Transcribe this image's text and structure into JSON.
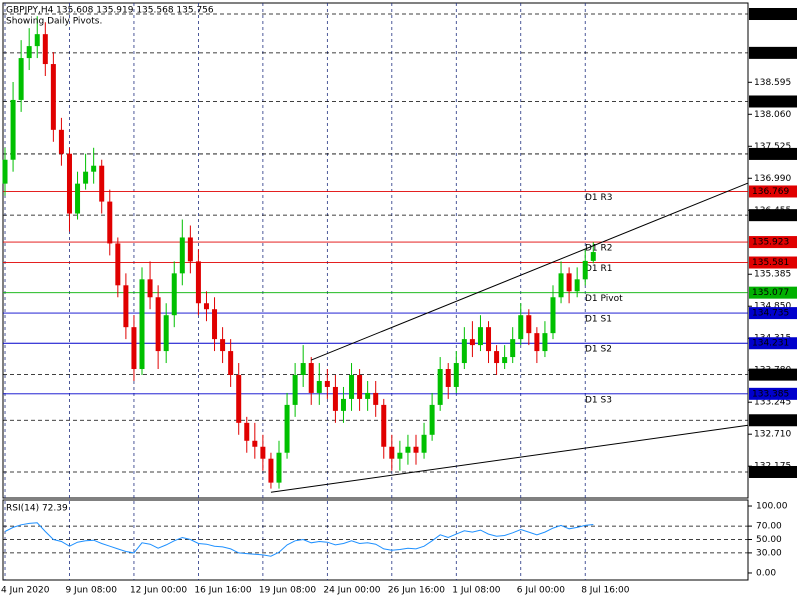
{
  "chart_data": [
    {
      "type": "candlestick",
      "title": "GBPJPY,H4  135.608 135.919 135.568 135.756",
      "subtitle": "Showing Daily Pivots.",
      "xlim": [
        -0.25,
        92.2
      ],
      "xticks": [
        {
          "value": 0,
          "label": "4 Jun 2020"
        },
        {
          "value": 8,
          "label": "9 Jun 08:00"
        },
        {
          "value": 16,
          "label": "12 Jun 00:00"
        },
        {
          "value": 24,
          "label": "16 Jun 16:00"
        },
        {
          "value": 32,
          "label": "19 Jun 08:00"
        },
        {
          "value": 40,
          "label": "24 Jun 00:00"
        },
        {
          "value": 48,
          "label": "26 Jun 16:00"
        },
        {
          "value": 56,
          "label": "1 Jul 08:00"
        },
        {
          "value": 64,
          "label": "6 Jul 00:00"
        },
        {
          "value": 72,
          "label": "8 Jul 16:00"
        }
      ],
      "ylim": [
        131.643,
        139.921
      ],
      "yticks": [
        138.595,
        {
          "value": 138.06,
          "label": "138.060"
        },
        137.525,
        {
          "value": 136.99,
          "label": "136.990"
        },
        136.455,
        135.385,
        {
          "value": 134.85,
          "label": "134.850"
        },
        134.315,
        {
          "value": 133.78,
          "label": "133.780"
        },
        133.245,
        {
          "value": 132.71,
          "label": "132.710"
        },
        132.175
      ],
      "up_color": "#00c000",
      "down_color": "#e00000",
      "open": [
        136.9,
        137.3,
        138.3,
        139.0,
        139.2,
        139.4,
        138.9,
        137.8,
        137.4,
        136.4,
        136.9,
        137.1,
        137.2,
        136.6,
        135.9,
        135.2,
        134.5,
        133.8,
        135.3,
        135.0,
        134.1,
        134.7,
        135.4,
        136.0,
        135.6,
        134.9,
        134.8,
        134.3,
        134.1,
        133.7,
        132.9,
        132.6,
        132.5,
        132.3,
        131.9,
        132.4,
        133.2,
        133.7,
        133.9,
        133.4,
        133.6,
        133.5,
        133.1,
        133.3,
        133.7,
        133.3,
        133.4,
        133.2,
        132.5,
        132.3,
        132.4,
        132.5,
        132.4,
        132.7,
        133.2,
        133.8,
        133.5,
        133.9,
        134.3,
        134.2,
        134.5,
        134.1,
        133.9,
        134.0,
        134.3,
        134.7,
        134.4,
        134.1,
        134.4,
        135.0,
        135.4,
        135.1,
        135.3,
        135.608
      ],
      "high": [
        137.5,
        138.6,
        139.3,
        139.5,
        139.7,
        139.6,
        139.1,
        138.0,
        137.5,
        137.1,
        137.4,
        137.5,
        137.3,
        136.8,
        136.0,
        135.4,
        134.7,
        135.5,
        135.6,
        135.2,
        134.9,
        135.6,
        136.3,
        136.2,
        135.8,
        135.1,
        135.0,
        134.5,
        134.3,
        133.9,
        133.0,
        132.9,
        132.7,
        132.4,
        132.6,
        133.4,
        133.9,
        134.2,
        134.0,
        133.9,
        133.8,
        133.7,
        133.5,
        133.9,
        133.8,
        133.6,
        133.6,
        133.3,
        132.7,
        132.6,
        132.7,
        132.7,
        132.9,
        133.4,
        134.0,
        133.9,
        134.1,
        134.5,
        134.6,
        134.7,
        134.6,
        134.2,
        134.2,
        134.5,
        134.9,
        134.8,
        134.5,
        134.6,
        135.2,
        135.6,
        135.5,
        135.5,
        135.8,
        135.919
      ],
      "low": [
        136.7,
        137.1,
        138.1,
        138.8,
        139.0,
        138.7,
        137.6,
        137.2,
        136.1,
        136.3,
        136.8,
        136.9,
        136.4,
        135.7,
        135.0,
        134.3,
        133.6,
        133.7,
        134.8,
        133.8,
        133.9,
        134.5,
        135.2,
        135.4,
        134.7,
        134.6,
        134.1,
        133.9,
        133.5,
        132.7,
        132.4,
        132.3,
        132.1,
        131.8,
        131.8,
        132.3,
        133.0,
        133.5,
        133.2,
        133.2,
        133.3,
        132.9,
        132.9,
        133.1,
        133.1,
        133.1,
        133.0,
        132.3,
        132.1,
        132.1,
        132.2,
        132.2,
        132.3,
        132.6,
        133.1,
        133.3,
        133.4,
        133.8,
        134.0,
        134.1,
        133.9,
        133.7,
        133.8,
        133.9,
        134.2,
        134.2,
        133.9,
        134.0,
        134.3,
        134.9,
        134.9,
        135.0,
        135.2,
        135.568
      ],
      "close": [
        137.3,
        138.3,
        139.0,
        139.2,
        139.4,
        138.9,
        137.8,
        137.4,
        136.4,
        136.9,
        137.1,
        137.2,
        136.6,
        135.9,
        135.2,
        134.5,
        133.8,
        135.3,
        135.0,
        134.1,
        134.7,
        135.4,
        136.0,
        135.6,
        134.9,
        134.8,
        134.3,
        134.1,
        133.7,
        132.9,
        132.6,
        132.5,
        132.3,
        131.9,
        132.4,
        133.2,
        133.7,
        133.9,
        133.4,
        133.6,
        133.5,
        133.1,
        133.3,
        133.7,
        133.3,
        133.4,
        133.2,
        132.5,
        132.3,
        132.4,
        132.5,
        132.4,
        132.7,
        133.2,
        133.8,
        133.5,
        133.9,
        134.3,
        134.2,
        134.5,
        134.1,
        133.9,
        134.0,
        134.3,
        134.7,
        134.4,
        134.1,
        134.4,
        135.0,
        135.4,
        135.1,
        135.3,
        135.608,
        135.756
      ],
      "hlines": [
        139.737,
        139.087,
        138.274,
        137.397,
        136.373,
        133.706,
        132.943,
        132.078
      ],
      "pivots": [
        {
          "name": "D1 R3",
          "value": 136.769,
          "color": "#e00000"
        },
        {
          "name": "D1 R2",
          "value": 135.923,
          "color": "#e00000"
        },
        {
          "name": "D1 R1",
          "value": 135.581,
          "color": "#e00000"
        },
        {
          "name": "D1 Pivot",
          "value": 135.077,
          "color": "#00b000"
        },
        {
          "name": "D1 S1",
          "value": 134.735,
          "color": "#0000cc"
        },
        {
          "name": "D1 S2",
          "value": 134.231,
          "color": "#0000cc"
        },
        {
          "name": "D1 S3",
          "value": 133.385,
          "color": "#0000cc"
        }
      ],
      "trendlines": [
        {
          "from": [
            38,
            133.95
          ],
          "to": [
            92.2,
            136.91
          ]
        },
        {
          "from": [
            33,
            131.74
          ],
          "to": [
            92.2,
            132.86
          ]
        }
      ]
    },
    {
      "type": "line",
      "title": "RSI(14) 72.39",
      "ylim": [
        -10.5,
        109
      ],
      "yticks": [
        {
          "value": 100,
          "label": "100.00"
        },
        {
          "value": 70,
          "label": "70.00"
        },
        {
          "value": 50,
          "label": "50.00"
        },
        {
          "value": 30,
          "label": "30.00"
        },
        {
          "value": 0,
          "label": "0.00"
        }
      ],
      "color": "#1e90ff",
      "values": [
        62,
        68,
        72,
        74,
        75,
        62,
        50,
        47,
        40,
        46,
        48,
        49,
        44,
        40,
        36,
        32,
        30,
        45,
        43,
        37,
        42,
        48,
        53,
        50,
        44,
        43,
        40,
        39,
        36,
        30,
        29,
        28,
        27,
        25,
        31,
        42,
        48,
        50,
        45,
        47,
        46,
        42,
        44,
        48,
        44,
        45,
        43,
        36,
        34,
        35,
        37,
        36,
        40,
        48,
        57,
        53,
        58,
        63,
        61,
        64,
        58,
        55,
        56,
        60,
        65,
        61,
        57,
        61,
        67,
        71,
        66,
        68,
        71,
        72.39
      ]
    }
  ]
}
